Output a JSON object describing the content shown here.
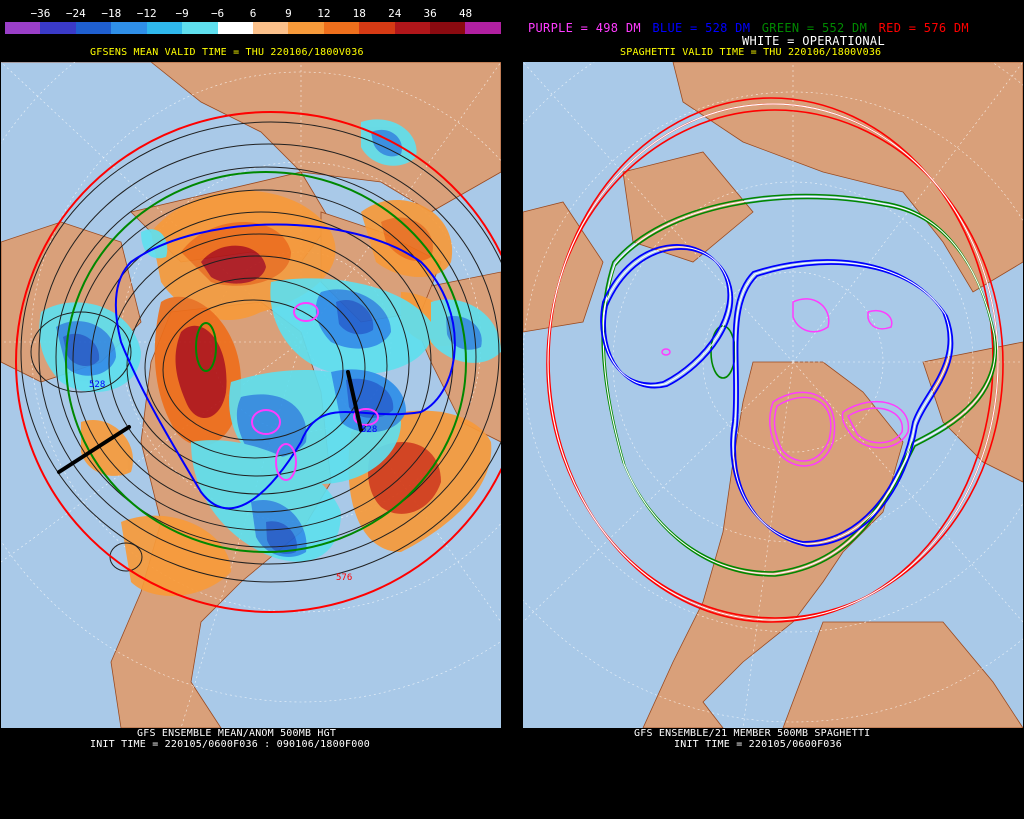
{
  "left": {
    "colorbar": {
      "labels": [
        "−36",
        "−24",
        "−18",
        "−12",
        "−9",
        "−6",
        "6",
        "9",
        "12",
        "18",
        "24",
        "36",
        "48"
      ],
      "colors": [
        "#9a3fc8",
        "#3a3ac8",
        "#1f5fd0",
        "#2f8fe8",
        "#2fb8ec",
        "#5fdfee",
        "#ffffff",
        "#fbc08a",
        "#f79a3a",
        "#ee6f1c",
        "#d63a14",
        "#b0161a",
        "#8a0a10",
        "#b020a0"
      ]
    },
    "header": "GFSENS MEAN VALID TIME = THU 220106/1800V036",
    "footer_line1": "GFS ENSEMBLE MEAN/ANOM 500MB HGT",
    "footer_line2": "INIT TIME = 220105/0600F036 : 090106/1800F000",
    "contour_labels": {
      "a": "528",
      "b": "576",
      "c": "528"
    }
  },
  "right": {
    "legend": {
      "purple": "PURPLE = 498 DM",
      "blue": "BLUE = 528 DM",
      "green": "GREEN = 552 DM",
      "red": "RED = 576 DM",
      "white": "WHITE = OPERATIONAL"
    },
    "header": "SPAGHETTI VALID TIME = THU 220106/1800V036",
    "footer_line1": "GFS ENSEMBLE/21 MEMBER 500MB SPAGHETTI",
    "footer_line2": "INIT TIME = 220105/0600F036"
  },
  "colors": {
    "ocean": "#a9c9e8",
    "land": "#d9a07a",
    "coast": "#9a4a20",
    "purple": "#ff3cff",
    "blue": "#0000ff",
    "green": "#008800",
    "red": "#ff0000",
    "white": "#ffffff"
  }
}
